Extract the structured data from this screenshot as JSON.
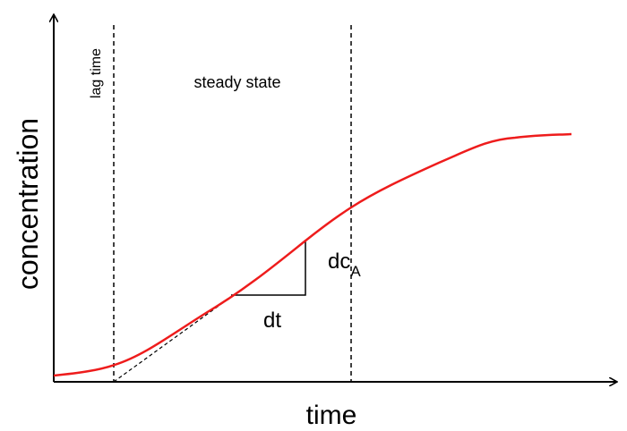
{
  "axes": {
    "y_label": "concentration",
    "x_label": "time"
  },
  "annotations": {
    "lag_time": "lag time",
    "steady_state": "steady state",
    "dc_main": "dc",
    "dc_sub": "A",
    "dt": "dt"
  },
  "colors": {
    "curve": "#ee1c1c",
    "axis": "#000000",
    "background": "#ffffff"
  }
}
